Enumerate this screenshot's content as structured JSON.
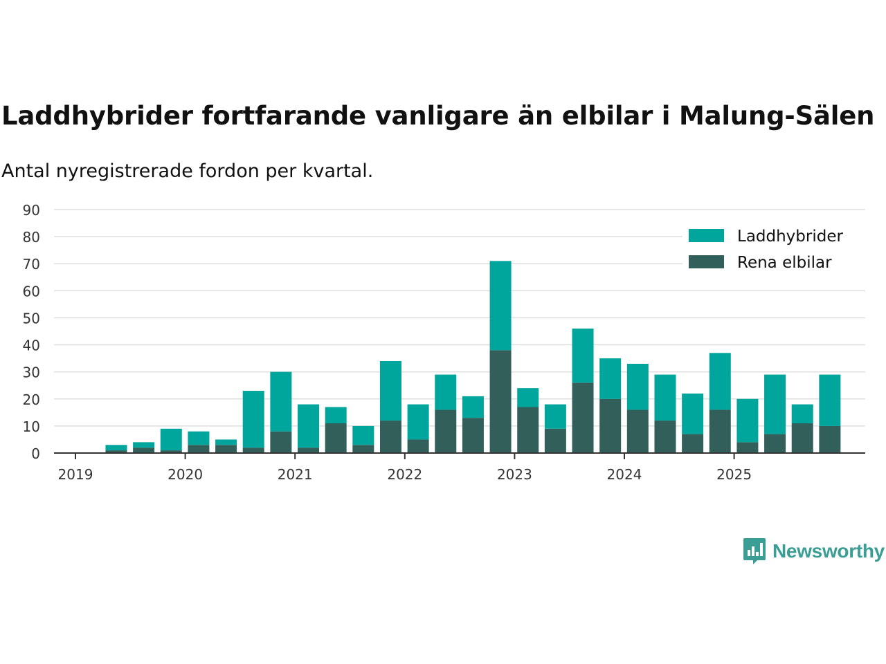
{
  "chart_data": {
    "type": "bar",
    "stacked": true,
    "title": "Laddhybrider fortfarande vanligare än elbilar i Malung-Sälen",
    "subtitle": "Antal nyregistrerade fordon per kvartal.",
    "xlabel": "",
    "ylabel": "",
    "ylim": [
      0,
      90
    ],
    "yticks": [
      0,
      10,
      20,
      30,
      40,
      50,
      60,
      70,
      80,
      90
    ],
    "xticks": [
      "2019",
      "2020",
      "2021",
      "2022",
      "2023",
      "2024",
      "2025"
    ],
    "categories": [
      "2019 Q2",
      "2019 Q3",
      "2019 Q4",
      "2020 Q1",
      "2020 Q2",
      "2020 Q3",
      "2020 Q4",
      "2021 Q1",
      "2021 Q2",
      "2021 Q3",
      "2021 Q4",
      "2022 Q1",
      "2022 Q2",
      "2022 Q3",
      "2022 Q4",
      "2023 Q1",
      "2023 Q2",
      "2023 Q3",
      "2023 Q4",
      "2024 Q1",
      "2024 Q2",
      "2024 Q3",
      "2024 Q4",
      "2025 Q1",
      "2025 Q2",
      "2025 Q3",
      "2025 Q4"
    ],
    "series": [
      {
        "name": "Rena elbilar",
        "color": "#335f5b",
        "values": [
          1,
          2,
          1,
          3,
          3,
          2,
          8,
          2,
          11,
          3,
          12,
          5,
          16,
          13,
          38,
          17,
          9,
          26,
          20,
          16,
          12,
          7,
          16,
          4,
          7,
          11,
          10
        ]
      },
      {
        "name": "Laddhybrider",
        "color": "#00a59b",
        "values": [
          2,
          2,
          8,
          5,
          2,
          21,
          22,
          16,
          6,
          7,
          22,
          13,
          13,
          8,
          33,
          7,
          9,
          20,
          15,
          17,
          17,
          15,
          21,
          16,
          22,
          7,
          19
        ]
      }
    ],
    "legend": {
      "position": "top-right",
      "entries": [
        "Laddhybrider",
        "Rena elbilar"
      ]
    },
    "grid": true
  },
  "brand": {
    "name": "Newsworthy",
    "color": "#3a9e95"
  }
}
